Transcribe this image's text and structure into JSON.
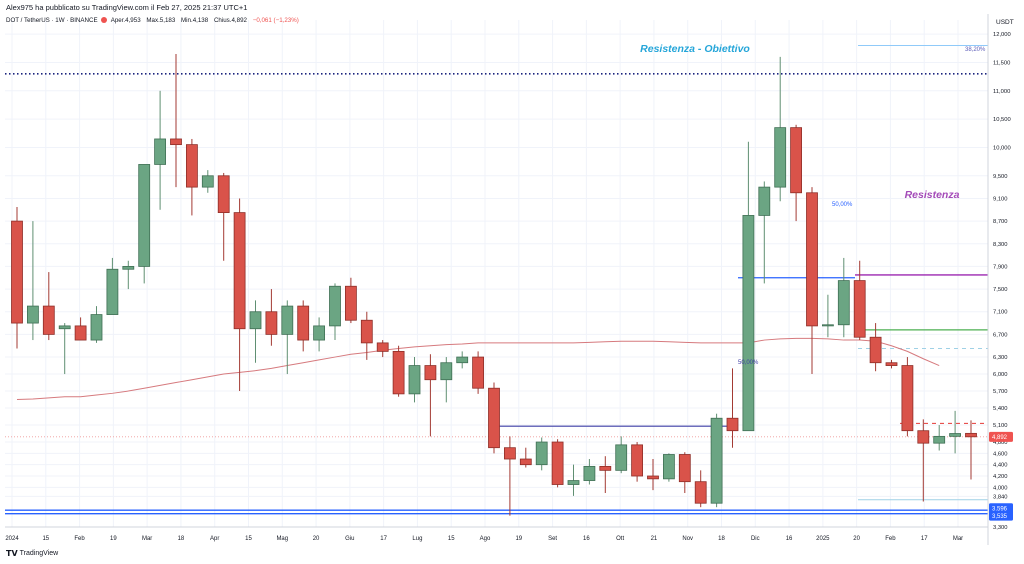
{
  "header": {
    "author": "Alex975 ha pubblicato su TradingView.com il Feb 27, 2025 21:37 UTC+1",
    "symbol": "DOT / TetherUS · 1W · BINANCE",
    "open": "Aper.4,953",
    "high": "Max.5,183",
    "low": "Min.4,138",
    "close": "Chius.4,892",
    "change": "−0,061 (−1,23%)",
    "currency": "USDT"
  },
  "footer": {
    "brand": "TradingView"
  },
  "colors": {
    "up": "#6ba583",
    "down": "#d9534a",
    "ma": "#d67a7e",
    "pivot": "#2962ff",
    "fib": "#5b5bb7",
    "res": "#9c27b0",
    "green": "#4caf50",
    "obj": "#26a6d9"
  },
  "chart_data": {
    "type": "candlestick",
    "title": "DOT / TetherUS · 1W · BINANCE",
    "ylim": [
      3.3,
      12.25
    ],
    "y_ticks": [
      "3,300",
      "3,600",
      "3,840",
      "4,000",
      "4,200",
      "4,400",
      "4,600",
      "4,800",
      "5,100",
      "5,400",
      "5,700",
      "6,000",
      "6,300",
      "6,700",
      "7,100",
      "7,500",
      "7,900",
      "8,300",
      "8,700",
      "9,100",
      "9,500",
      "10,000",
      "10,500",
      "11,000",
      "11,500",
      "12,000"
    ],
    "x_labels": [
      "2024",
      "15",
      "Feb",
      "19",
      "Mar",
      "18",
      "Apr",
      "15",
      "Mag",
      "20",
      "Giu",
      "17",
      "Lug",
      "15",
      "Ago",
      "19",
      "Set",
      "16",
      "Ott",
      "21",
      "Nov",
      "18",
      "Dic",
      "16",
      "2025",
      "20",
      "Feb",
      "17",
      "Mar"
    ],
    "candles": [
      {
        "o": 8.7,
        "h": 8.95,
        "l": 6.45,
        "c": 6.9
      },
      {
        "o": 6.9,
        "h": 8.7,
        "l": 6.6,
        "c": 7.2
      },
      {
        "o": 7.2,
        "h": 7.8,
        "l": 6.6,
        "c": 6.7
      },
      {
        "o": 6.8,
        "h": 6.9,
        "l": 6.0,
        "c": 6.85
      },
      {
        "o": 6.85,
        "h": 7.0,
        "l": 6.6,
        "c": 6.6
      },
      {
        "o": 6.6,
        "h": 7.2,
        "l": 6.55,
        "c": 7.05
      },
      {
        "o": 7.05,
        "h": 8.05,
        "l": 7.05,
        "c": 7.85
      },
      {
        "o": 7.85,
        "h": 8.0,
        "l": 7.5,
        "c": 7.9
      },
      {
        "o": 7.9,
        "h": 9.7,
        "l": 7.6,
        "c": 9.7
      },
      {
        "o": 9.7,
        "h": 11.0,
        "l": 8.9,
        "c": 10.15
      },
      {
        "o": 10.15,
        "h": 11.65,
        "l": 9.3,
        "c": 10.05
      },
      {
        "o": 10.05,
        "h": 10.15,
        "l": 8.8,
        "c": 9.3
      },
      {
        "o": 9.3,
        "h": 9.6,
        "l": 9.2,
        "c": 9.5
      },
      {
        "o": 9.5,
        "h": 9.55,
        "l": 8.0,
        "c": 8.85
      },
      {
        "o": 8.85,
        "h": 9.1,
        "l": 5.7,
        "c": 6.8
      },
      {
        "o": 6.8,
        "h": 7.3,
        "l": 6.2,
        "c": 7.1
      },
      {
        "o": 7.1,
        "h": 7.5,
        "l": 6.5,
        "c": 6.7
      },
      {
        "o": 6.7,
        "h": 7.3,
        "l": 6.0,
        "c": 7.2
      },
      {
        "o": 7.2,
        "h": 7.3,
        "l": 6.4,
        "c": 6.6
      },
      {
        "o": 6.6,
        "h": 7.0,
        "l": 6.4,
        "c": 6.85
      },
      {
        "o": 6.85,
        "h": 7.6,
        "l": 6.6,
        "c": 7.55
      },
      {
        "o": 7.55,
        "h": 7.7,
        "l": 6.9,
        "c": 6.95
      },
      {
        "o": 6.95,
        "h": 7.1,
        "l": 6.25,
        "c": 6.55
      },
      {
        "o": 6.55,
        "h": 6.6,
        "l": 6.3,
        "c": 6.4
      },
      {
        "o": 6.4,
        "h": 6.5,
        "l": 5.6,
        "c": 5.65
      },
      {
        "o": 5.65,
        "h": 6.3,
        "l": 5.5,
        "c": 6.15
      },
      {
        "o": 6.15,
        "h": 6.35,
        "l": 4.9,
        "c": 5.9
      },
      {
        "o": 5.9,
        "h": 6.3,
        "l": 5.5,
        "c": 6.2
      },
      {
        "o": 6.2,
        "h": 6.4,
        "l": 6.1,
        "c": 6.3
      },
      {
        "o": 6.3,
        "h": 6.4,
        "l": 5.65,
        "c": 5.75
      },
      {
        "o": 5.75,
        "h": 5.85,
        "l": 4.6,
        "c": 4.7
      },
      {
        "o": 4.7,
        "h": 4.9,
        "l": 3.5,
        "c": 4.5
      },
      {
        "o": 4.5,
        "h": 4.7,
        "l": 4.35,
        "c": 4.4
      },
      {
        "o": 4.4,
        "h": 4.88,
        "l": 4.3,
        "c": 4.8
      },
      {
        "o": 4.8,
        "h": 4.85,
        "l": 4.0,
        "c": 4.05
      },
      {
        "o": 4.05,
        "h": 4.4,
        "l": 3.85,
        "c": 4.12
      },
      {
        "o": 4.12,
        "h": 4.5,
        "l": 4.05,
        "c": 4.37
      },
      {
        "o": 4.37,
        "h": 4.55,
        "l": 3.9,
        "c": 4.3
      },
      {
        "o": 4.3,
        "h": 4.9,
        "l": 4.25,
        "c": 4.75
      },
      {
        "o": 4.75,
        "h": 4.8,
        "l": 4.1,
        "c": 4.2
      },
      {
        "o": 4.2,
        "h": 4.5,
        "l": 3.95,
        "c": 4.15
      },
      {
        "o": 4.15,
        "h": 4.6,
        "l": 4.1,
        "c": 4.58
      },
      {
        "o": 4.58,
        "h": 4.62,
        "l": 3.9,
        "c": 4.1
      },
      {
        "o": 4.1,
        "h": 4.3,
        "l": 3.65,
        "c": 3.72
      },
      {
        "o": 3.72,
        "h": 5.3,
        "l": 3.65,
        "c": 5.22
      },
      {
        "o": 5.22,
        "h": 6.1,
        "l": 4.7,
        "c": 5.0
      },
      {
        "o": 5.0,
        "h": 10.1,
        "l": 5.0,
        "c": 8.8
      },
      {
        "o": 8.8,
        "h": 9.4,
        "l": 7.6,
        "c": 9.3
      },
      {
        "o": 9.3,
        "h": 11.6,
        "l": 9.05,
        "c": 10.35
      },
      {
        "o": 10.35,
        "h": 10.4,
        "l": 8.7,
        "c": 9.2
      },
      {
        "o": 9.2,
        "h": 9.3,
        "l": 6.0,
        "c": 6.85
      },
      {
        "o": 6.85,
        "h": 7.4,
        "l": 6.65,
        "c": 6.87
      },
      {
        "o": 6.87,
        "h": 8.05,
        "l": 6.65,
        "c": 7.65
      },
      {
        "o": 7.65,
        "h": 8.0,
        "l": 6.6,
        "c": 6.65
      },
      {
        "o": 6.65,
        "h": 6.9,
        "l": 6.05,
        "c": 6.2
      },
      {
        "o": 6.2,
        "h": 6.25,
        "l": 6.1,
        "c": 6.15
      },
      {
        "o": 6.15,
        "h": 6.3,
        "l": 4.9,
        "c": 5.0
      },
      {
        "o": 5.0,
        "h": 5.2,
        "l": 3.75,
        "c": 4.78
      },
      {
        "o": 4.78,
        "h": 5.1,
        "l": 4.65,
        "c": 4.9
      },
      {
        "o": 4.9,
        "h": 5.35,
        "l": 4.6,
        "c": 4.95
      },
      {
        "o": 4.953,
        "h": 5.183,
        "l": 4.138,
        "c": 4.892
      }
    ],
    "moving_average": [
      5.55,
      5.56,
      5.58,
      5.6,
      5.6,
      5.63,
      5.66,
      5.7,
      5.75,
      5.8,
      5.85,
      5.9,
      5.95,
      6.0,
      6.03,
      6.06,
      6.1,
      6.15,
      6.2,
      6.25,
      6.3,
      6.35,
      6.38,
      6.42,
      6.45,
      6.48,
      6.5,
      6.52,
      6.53,
      6.55,
      6.55,
      6.55,
      6.55,
      6.55,
      6.55,
      6.55,
      6.56,
      6.57,
      6.58,
      6.58,
      6.58,
      6.57,
      6.56,
      6.55,
      6.55,
      6.55,
      6.55,
      6.6,
      6.62,
      6.63,
      6.63,
      6.62,
      6.6,
      6.6,
      6.58,
      6.5,
      6.4,
      6.27,
      6.15
    ],
    "annotations": {
      "obiettivo_label": "Resistenza - Obiettivo",
      "resistenza_label": "Resistenza",
      "fib_upper": "38,20%",
      "fib_mid": "50,00%",
      "fib_lower": "50,00%",
      "last_price": "4,892",
      "support_a": "3,596",
      "support_b": "3,535"
    }
  }
}
